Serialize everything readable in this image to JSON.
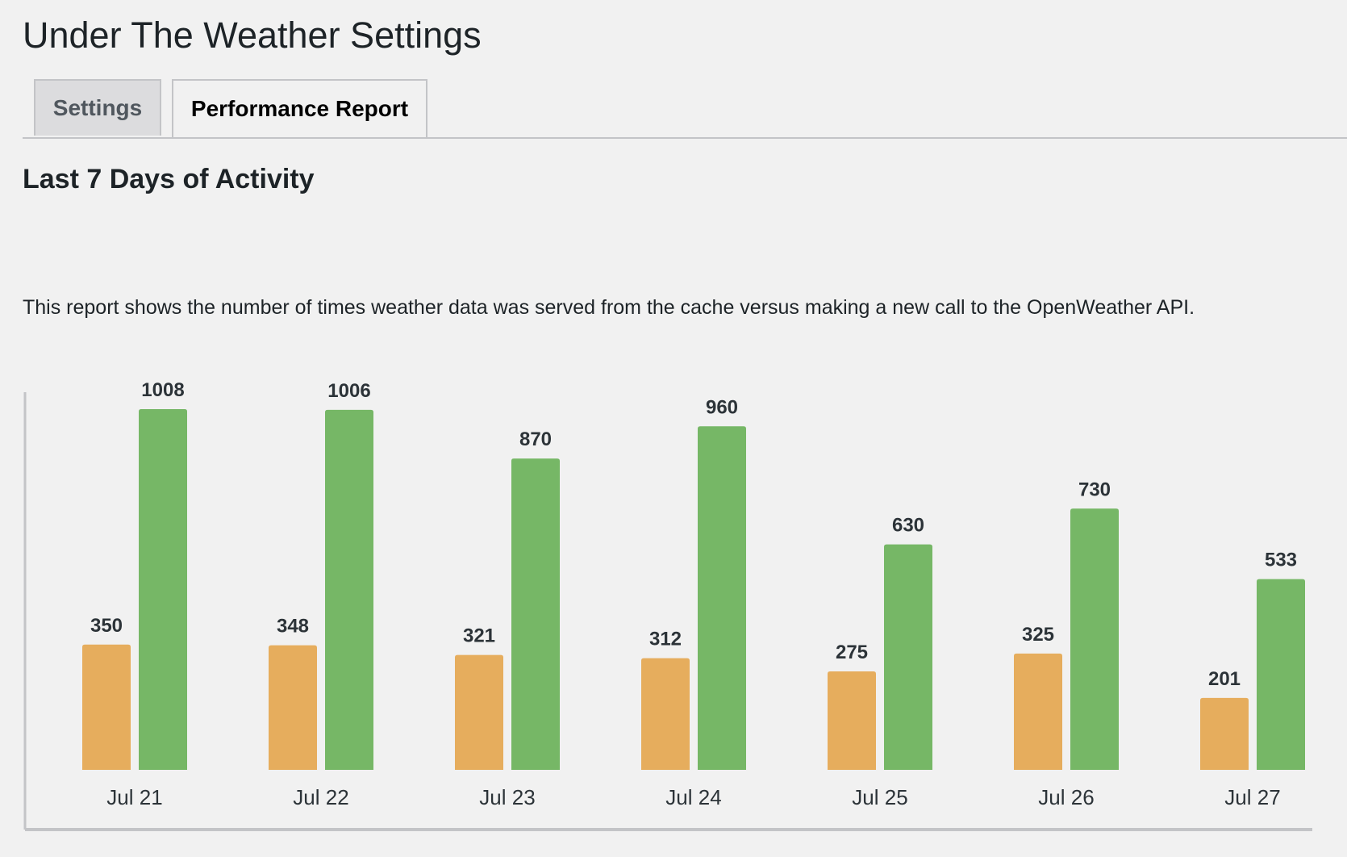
{
  "page": {
    "title": "Under The Weather Settings"
  },
  "tabs": [
    {
      "label": "Settings",
      "active": false
    },
    {
      "label": "Performance Report",
      "active": true
    }
  ],
  "report": {
    "heading": "Last 7 Days of Activity",
    "description": "This report shows the number of times weather data was served from the cache versus making a new call to the OpenWeather API."
  },
  "colors": {
    "cache": "#e6ad5d",
    "api": "#76b766",
    "axis": "#c3c4c7"
  },
  "chart_data": {
    "type": "bar",
    "categories": [
      "Jul 21",
      "Jul 22",
      "Jul 23",
      "Jul 24",
      "Jul 25",
      "Jul 26",
      "Jul 27"
    ],
    "series": [
      {
        "values": [
          350,
          348,
          321,
          312,
          275,
          325,
          201
        ],
        "color": "#e6ad5d"
      },
      {
        "values": [
          1008,
          1006,
          870,
          960,
          630,
          730,
          533
        ],
        "color": "#76b766"
      }
    ],
    "title": "",
    "xlabel": "",
    "ylabel": "",
    "ylim": [
      0,
      1050
    ],
    "grid": false,
    "legend": "none"
  }
}
